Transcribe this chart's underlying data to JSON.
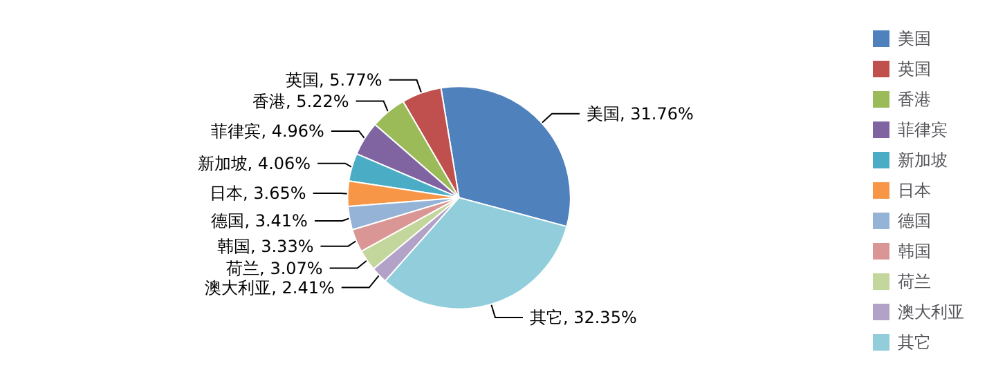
{
  "chart_data": {
    "type": "pie",
    "categories": [
      "美国",
      "英国",
      "香港",
      "菲律宾",
      "新加坡",
      "日本",
      "德国",
      "韩国",
      "荷兰",
      "澳大利亚",
      "其它"
    ],
    "values": [
      31.76,
      5.77,
      5.22,
      4.96,
      4.06,
      3.65,
      3.41,
      3.33,
      3.07,
      2.41,
      32.35
    ],
    "value_labels": [
      ", 31.76%",
      ", 5.77%",
      ", 5.22%",
      ", 4.96%",
      ", 4.06%",
      ", 3.65%",
      ", 3.41%",
      ", 3.33%",
      ", 3.07%",
      ", 2.41%",
      ", 32.35%"
    ],
    "colors": [
      "#4f81bd",
      "#c0504d",
      "#9bbb59",
      "#8064a2",
      "#4bacc6",
      "#f79646",
      "#95b3d7",
      "#d99694",
      "#c3d69b",
      "#b3a2c7",
      "#92cddc"
    ],
    "legend": "right"
  }
}
